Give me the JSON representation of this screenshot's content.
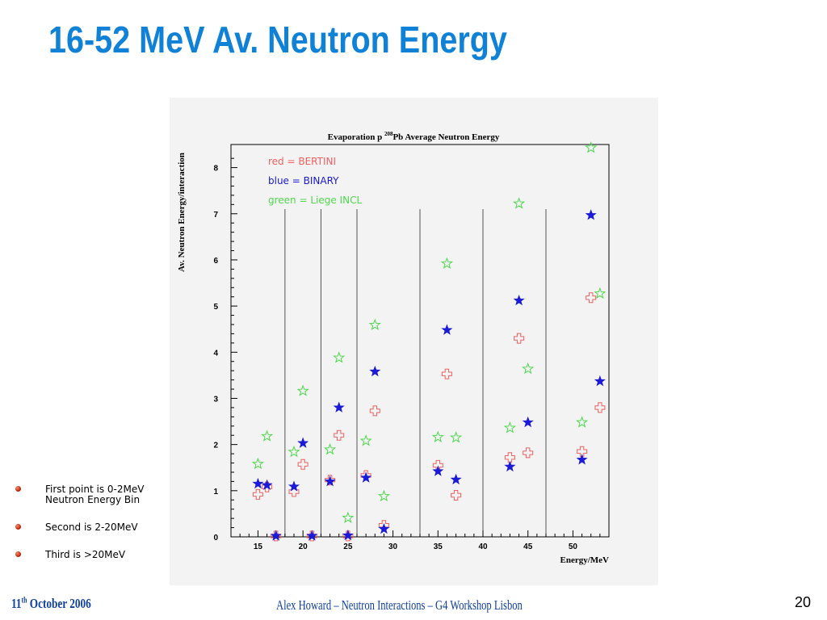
{
  "slide": {
    "title": "16-52 MeV Av. Neutron Energy",
    "bullets": [
      "First point is 0-2MeV Neutron Energy Bin",
      "Second is 2-20MeV",
      "Third is >20MeV"
    ],
    "footer": {
      "date_day": "11",
      "date_suffix": "th",
      "date_rest": " October 2006",
      "center": "Alex Howard – Neutron Interactions – G4 Workshop Lisbon",
      "page_number": "20"
    }
  },
  "colors": {
    "title": "#0f82d8",
    "footer": "#0f3f9f",
    "bertini": "#f25f5f",
    "binary": "#1a1ad8",
    "liege": "#4ed84e"
  },
  "chart_data": {
    "type": "scatter",
    "title_prefix": "Evaporation p ",
    "title_superscript": "208",
    "title_suffix": "Pb Average Neutron Energy",
    "xlabel": "Energy/MeV",
    "ylabel": "Av. Neutron Energy/interaction",
    "xlim": [
      12,
      54
    ],
    "ylim": [
      0,
      8.5
    ],
    "x_ticks": [
      15,
      20,
      25,
      30,
      35,
      40,
      45,
      50
    ],
    "y_ticks": [
      0,
      1,
      2,
      3,
      4,
      5,
      6,
      7,
      8
    ],
    "separators_x": [
      18,
      22,
      26,
      33,
      40,
      47
    ],
    "separators_top_y": 7.1,
    "legend": [
      "red = BERTINI",
      "blue = BINARY",
      "green = Liege INCL"
    ],
    "legend_placement": "top-left",
    "series": [
      {
        "name": "BERTINI",
        "marker": "open-cross",
        "points": [
          [
            15,
            0.92
          ],
          [
            16,
            1.08
          ],
          [
            17,
            0.02
          ],
          [
            19,
            0.98
          ],
          [
            20,
            1.57
          ],
          [
            21,
            0.02
          ],
          [
            23,
            1.23
          ],
          [
            24,
            2.2
          ],
          [
            25,
            0.02
          ],
          [
            27,
            1.33
          ],
          [
            28,
            2.73
          ],
          [
            29,
            0.25
          ],
          [
            35,
            1.55
          ],
          [
            36,
            3.53
          ],
          [
            37,
            0.9
          ],
          [
            43,
            1.72
          ],
          [
            44,
            4.3
          ],
          [
            45,
            1.82
          ],
          [
            51,
            1.85
          ],
          [
            52,
            5.18
          ],
          [
            53,
            2.8
          ]
        ]
      },
      {
        "name": "BINARY",
        "marker": "filled-star",
        "points": [
          [
            15,
            1.15
          ],
          [
            16,
            1.12
          ],
          [
            17,
            0.02
          ],
          [
            19,
            1.09
          ],
          [
            20,
            2.03
          ],
          [
            21,
            0.02
          ],
          [
            23,
            1.2
          ],
          [
            24,
            2.8
          ],
          [
            25,
            0.03
          ],
          [
            27,
            1.28
          ],
          [
            28,
            3.58
          ],
          [
            29,
            0.17
          ],
          [
            35,
            1.42
          ],
          [
            36,
            4.48
          ],
          [
            37,
            1.24
          ],
          [
            43,
            1.52
          ],
          [
            44,
            5.12
          ],
          [
            45,
            2.48
          ],
          [
            51,
            1.67
          ],
          [
            52,
            6.97
          ],
          [
            53,
            3.37
          ]
        ]
      },
      {
        "name": "Liege INCL",
        "marker": "open-star",
        "points": [
          [
            15,
            1.58
          ],
          [
            16,
            2.18
          ],
          [
            19,
            1.84
          ],
          [
            20,
            3.16
          ],
          [
            23,
            1.89
          ],
          [
            24,
            3.88
          ],
          [
            25,
            0.41
          ],
          [
            27,
            2.08
          ],
          [
            28,
            4.59
          ],
          [
            29,
            0.88
          ],
          [
            35,
            2.16
          ],
          [
            36,
            5.92
          ],
          [
            37,
            2.15
          ],
          [
            43,
            2.36
          ],
          [
            44,
            7.22
          ],
          [
            45,
            3.64
          ],
          [
            51,
            2.48
          ],
          [
            52,
            8.43
          ],
          [
            53,
            5.27
          ]
        ]
      }
    ]
  }
}
